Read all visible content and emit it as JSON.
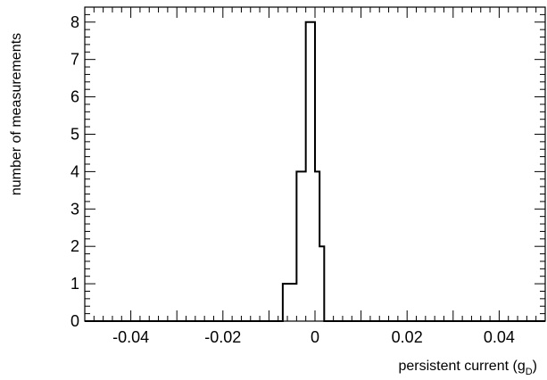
{
  "chart_data": {
    "type": "histogram",
    "xlabel": "persistent current (g",
    "xlabel_subscript": "D",
    "xlabel_suffix": ")",
    "ylabel": "number of measurements",
    "xlim": [
      -0.05,
      0.05
    ],
    "ylim": [
      0,
      8.4
    ],
    "x_ticks": [
      -0.04,
      -0.02,
      0,
      0.02,
      0.04
    ],
    "x_tick_labels": [
      "-0.04",
      "-0.02",
      "0",
      "0.02",
      "0.04"
    ],
    "y_ticks": [
      0,
      1,
      2,
      3,
      4,
      5,
      6,
      7,
      8
    ],
    "y_tick_labels": [
      "0",
      "1",
      "2",
      "3",
      "4",
      "5",
      "6",
      "7",
      "8"
    ],
    "bin_edges": [
      -0.007,
      -0.004,
      -0.002,
      0.0,
      0.001,
      0.002,
      0.003
    ],
    "counts": [
      1,
      4,
      8,
      4,
      2,
      0
    ],
    "grid": false,
    "line_color": "#000000"
  }
}
